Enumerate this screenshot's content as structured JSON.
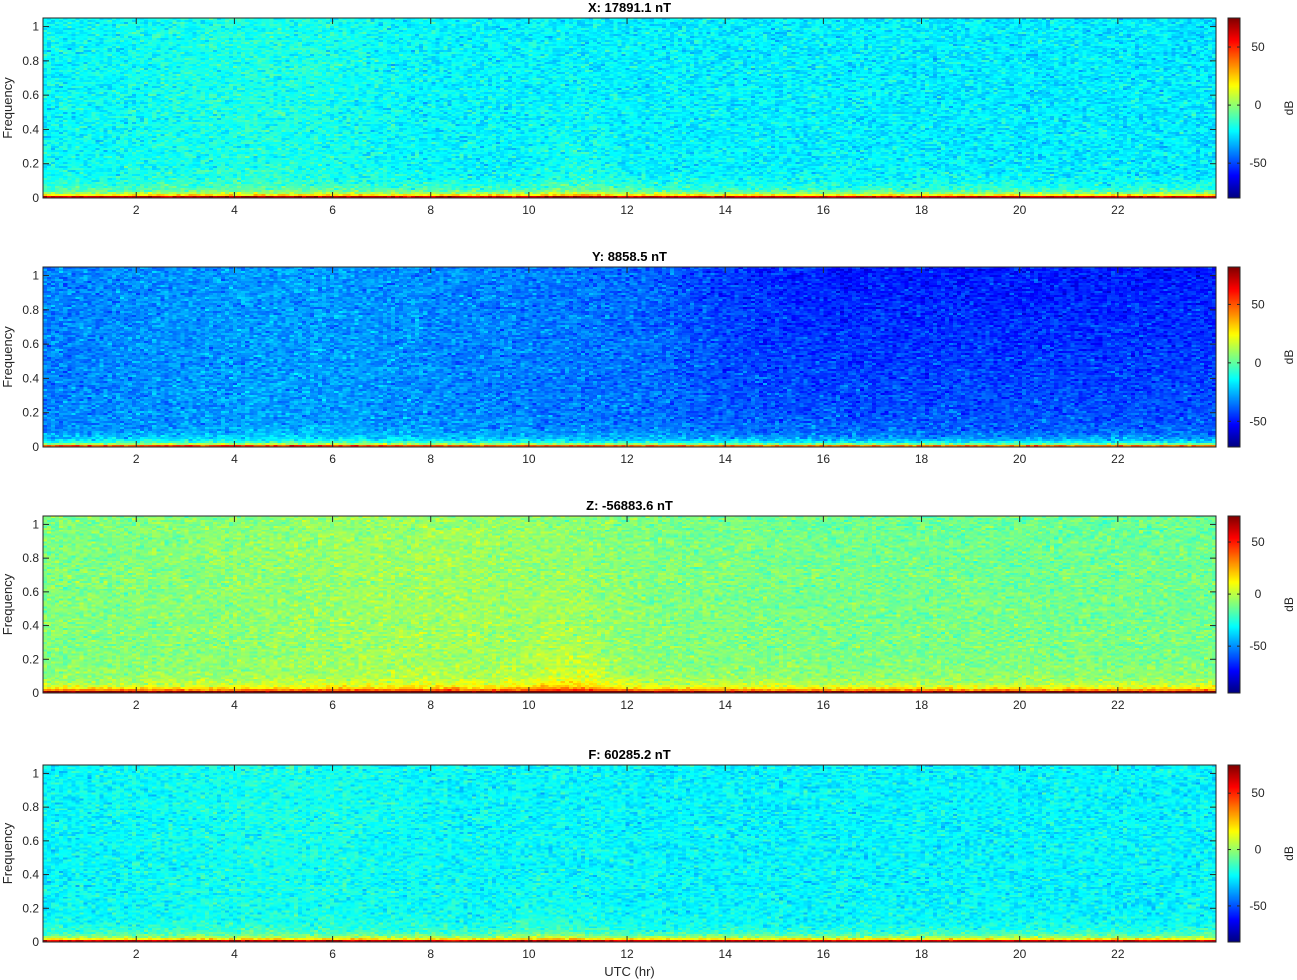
{
  "figure": {
    "xlabel": "UTC (hr)"
  },
  "chart_data": [
    {
      "type": "heatmap",
      "title": "X: 17891.1 nT",
      "xlabel": "",
      "ylabel": "Frequency",
      "xlim": [
        0.1,
        24
      ],
      "ylim": [
        0,
        1.05
      ],
      "xticks": [
        2,
        4,
        6,
        8,
        10,
        12,
        14,
        16,
        18,
        20,
        22
      ],
      "yticks": [
        0,
        0.2,
        0.4,
        0.6,
        0.8,
        1
      ],
      "colormap": "jet",
      "colorbar": {
        "label": "dB",
        "range": [
          -80,
          75
        ],
        "ticks": [
          -50,
          0,
          50
        ]
      },
      "background_db": -22,
      "low_freq_band": "0 to ~0.05 Frequency: high power (up to ~75 dB at 0)",
      "enhanced_activity_hours": [
        4,
        7,
        10.5,
        11.5
      ]
    },
    {
      "type": "heatmap",
      "title": "Y: 8858.5 nT",
      "xlabel": "",
      "ylabel": "Frequency",
      "xlim": [
        0.1,
        24
      ],
      "ylim": [
        0,
        1.05
      ],
      "xticks": [
        2,
        4,
        6,
        8,
        10,
        12,
        14,
        16,
        18,
        20,
        22
      ],
      "yticks": [
        0,
        0.2,
        0.4,
        0.6,
        0.8,
        1
      ],
      "colormap": "jet",
      "colorbar": {
        "label": "dB",
        "range": [
          -72,
          82
        ],
        "ticks": [
          -50,
          0,
          50
        ]
      },
      "background_db": -35,
      "low_freq_band": "0 to ~0.05 Frequency: high power",
      "quiet_hours": [
        13,
        24
      ]
    },
    {
      "type": "heatmap",
      "title": "Z: -56883.6 nT",
      "xlabel": "",
      "ylabel": "Frequency",
      "xlim": [
        0.1,
        24
      ],
      "ylim": [
        0,
        1.05
      ],
      "xticks": [
        2,
        4,
        6,
        8,
        10,
        12,
        14,
        16,
        18,
        20,
        22
      ],
      "yticks": [
        0,
        0.2,
        0.4,
        0.6,
        0.8,
        1
      ],
      "colormap": "jet",
      "colorbar": {
        "label": "dB",
        "range": [
          -95,
          75
        ],
        "ticks": [
          -50,
          0,
          50
        ]
      },
      "background_db": -10,
      "low_freq_band": "0 to ~0.06 Frequency: high power",
      "enhanced_activity_hours": [
        9.5,
        11.5
      ]
    },
    {
      "type": "heatmap",
      "title": "F: 60285.2 nT",
      "xlabel": "UTC (hr)",
      "ylabel": "Frequency",
      "xlim": [
        0.1,
        24
      ],
      "ylim": [
        0,
        1.05
      ],
      "xticks": [
        2,
        4,
        6,
        8,
        10,
        12,
        14,
        16,
        18,
        20,
        22
      ],
      "yticks": [
        0,
        0.2,
        0.4,
        0.6,
        0.8,
        1
      ],
      "colormap": "jet",
      "colorbar": {
        "label": "dB",
        "range": [
          -82,
          75
        ],
        "ticks": [
          -50,
          0,
          50
        ]
      },
      "background_db": -24,
      "low_freq_band": "0 to ~0.05 Frequency: high power",
      "enhanced_activity_hours": [
        10,
        11
      ]
    }
  ]
}
